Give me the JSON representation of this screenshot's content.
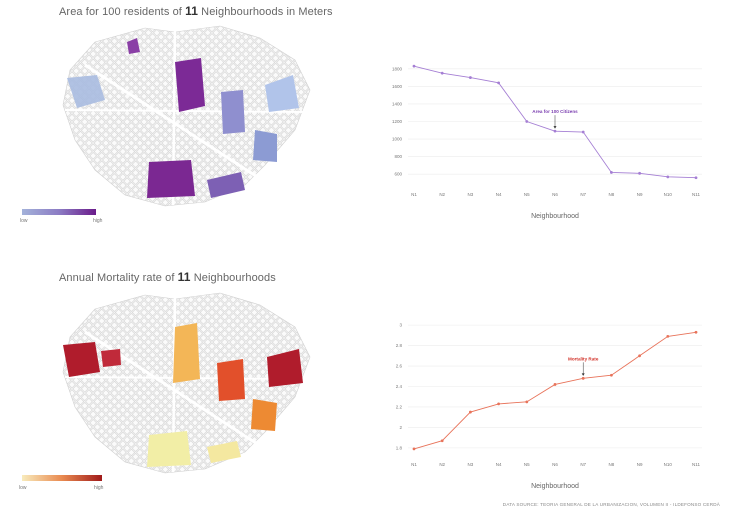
{
  "map1": {
    "title_prefix": "Area for 100 residents of ",
    "title_bold": "11",
    "title_suffix": " Neighbourhoods in Meters",
    "legend_low": "low",
    "legend_high": "high",
    "color_low": "#9aa8d6",
    "color_high": "#6a1b8a"
  },
  "map2": {
    "title_prefix": "Annual Mortality rate of ",
    "title_bold": "11",
    "title_suffix": " Neighbourhoods",
    "legend_low": "low",
    "legend_high": "high",
    "color_low": "#f7eec0",
    "color_high": "#a01a1a"
  },
  "source_note": "DATA SOURCE: TEORIA GENERAL DE LA URBANIZACION, VOLUMEN II - ILDEFONSO CERDÀ",
  "chart_data": [
    {
      "type": "line",
      "categories": [
        "N1",
        "N2",
        "N3",
        "N4",
        "N5",
        "N6",
        "N7",
        "N8",
        "N9",
        "N10",
        "N11"
      ],
      "values": [
        1830,
        1750,
        1700,
        1640,
        1200,
        1090,
        1080,
        620,
        610,
        570,
        560
      ],
      "series_color": "#a57fd4",
      "xlabel": "Neighbourhood",
      "ylabel": "",
      "ylim": [
        500,
        1900
      ],
      "yticks": [
        600,
        800,
        1000,
        1200,
        1400,
        1600,
        1800
      ],
      "annotation": {
        "text": "Area for 100 Citizens",
        "category": "N6",
        "color": "#7b3fb0"
      }
    },
    {
      "type": "line",
      "categories": [
        "N1",
        "N2",
        "N3",
        "N4",
        "N5",
        "N6",
        "N7",
        "N8",
        "N9",
        "N10",
        "N11"
      ],
      "values": [
        1.79,
        1.87,
        2.15,
        2.23,
        2.25,
        2.42,
        2.48,
        2.51,
        2.7,
        2.89,
        2.93
      ],
      "series_color": "#e8735a",
      "xlabel": "Neighbourhood",
      "ylabel": "",
      "ylim": [
        1.75,
        3.05
      ],
      "yticks": [
        1.8,
        2,
        2.2,
        2.4,
        2.6,
        2.8,
        3
      ],
      "annotation": {
        "text": "Mortality Rate",
        "category": "N7",
        "color": "#d2332a"
      }
    }
  ]
}
